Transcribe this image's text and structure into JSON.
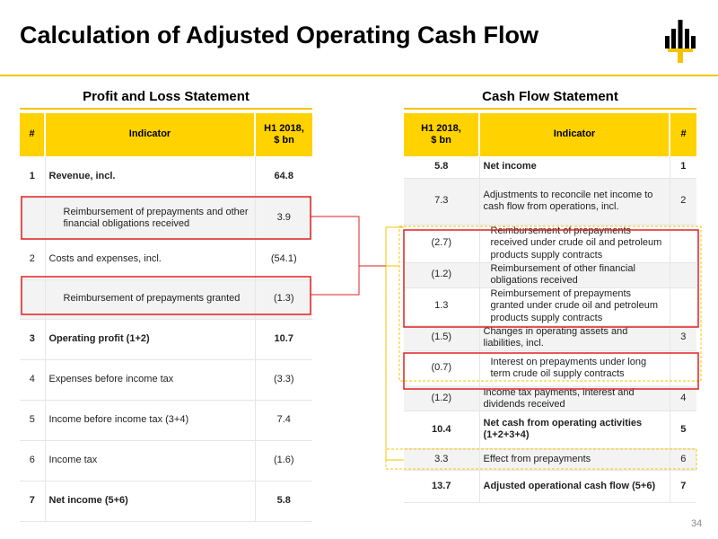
{
  "title": "Calculation of Adjusted Operating Cash Flow",
  "page_number": "34",
  "colors": {
    "accent": "#ffd200",
    "highlight_box": "#e02020",
    "connector_line": "#f5c400"
  },
  "logo": {
    "icon": "rosneft-logo-icon"
  },
  "pl": {
    "title": "Profit and Loss Statement",
    "header": {
      "num": "#",
      "indicator": "Indicator",
      "value": "H1 2018,\n$ bn"
    },
    "rows": [
      {
        "num": "1",
        "indicator": "Revenue, incl.",
        "value": "64.8"
      },
      {
        "num": "",
        "indicator": "Reimbursement of prepayments and other financial obligations received",
        "value": "3.9"
      },
      {
        "num": "2",
        "indicator": "Costs and expenses, incl.",
        "value": "(54.1)"
      },
      {
        "num": "",
        "indicator": "Reimbursement of prepayments granted",
        "value": "(1.3)"
      },
      {
        "num": "3",
        "indicator": "Operating profit (1+2)",
        "value": "10.7"
      },
      {
        "num": "4",
        "indicator": "Expenses before income tax",
        "value": "(3.3)"
      },
      {
        "num": "5",
        "indicator": "Income before income tax (3+4)",
        "value": "7.4"
      },
      {
        "num": "6",
        "indicator": "Income tax",
        "value": "(1.6)"
      },
      {
        "num": "7",
        "indicator": "Net income (5+6)",
        "value": "5.8"
      }
    ]
  },
  "cf": {
    "title": "Cash Flow Statement",
    "header": {
      "value": "H1 2018,\n$ bn",
      "indicator": "Indicator",
      "num": "#"
    },
    "rows": [
      {
        "value": "5.8",
        "indicator": "Net income",
        "num": "1"
      },
      {
        "value": "7.3",
        "indicator": "Adjustments to reconcile net income to cash flow from operations, incl.",
        "num": "2"
      },
      {
        "value": "(2.7)",
        "indicator": "Reimbursement of prepayments received under crude oil and petroleum products supply contracts",
        "num": ""
      },
      {
        "value": "(1.2)",
        "indicator": "Reimbursement of other financial obligations received",
        "num": ""
      },
      {
        "value": "1.3",
        "indicator": "Reimbursement of prepayments granted under crude oil and petroleum products supply contracts",
        "num": ""
      },
      {
        "value": "(1.5)",
        "indicator": "Changes in operating assets and liabilities, incl.",
        "num": "3"
      },
      {
        "value": "(0.7)",
        "indicator": "Interest on prepayments under long term crude oil supply contracts",
        "num": ""
      },
      {
        "value": "(1.2)",
        "indicator": "Income tax payments, interest and dividends received",
        "num": "4"
      },
      {
        "value": "10.4",
        "indicator": "Net cash from operating activities (1+2+3+4)",
        "num": "5"
      },
      {
        "value": "3.3",
        "indicator": "Effect from prepayments",
        "num": "6"
      },
      {
        "value": "13.7",
        "indicator": "Adjusted operational cash flow (5+6)",
        "num": "7"
      }
    ]
  }
}
